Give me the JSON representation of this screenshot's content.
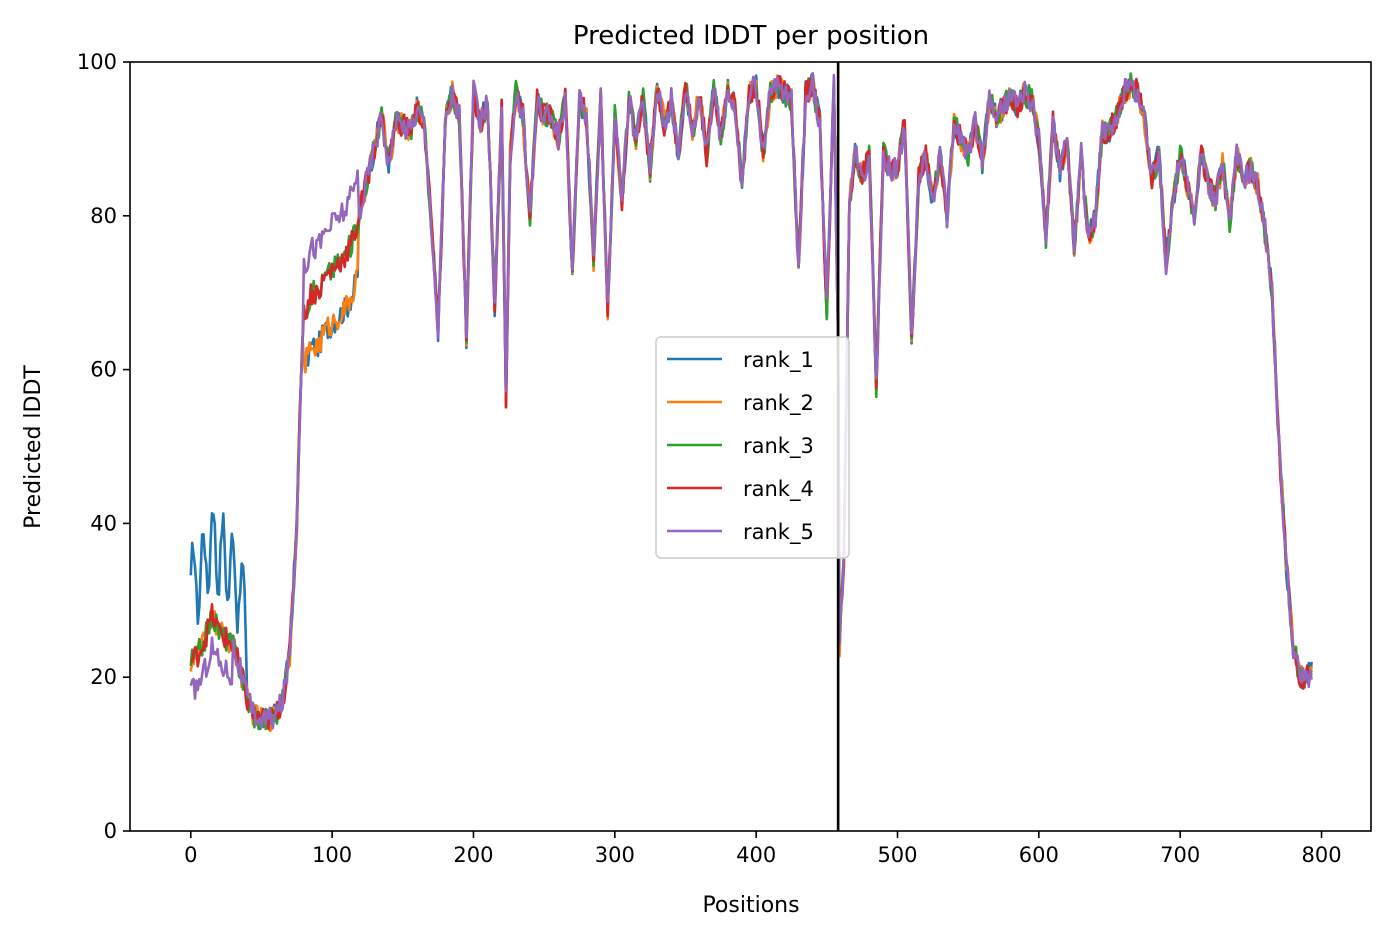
{
  "chart_data": {
    "type": "line",
    "title": "Predicted lDDT per position",
    "xlabel": "Positions",
    "ylabel": "Predicted lDDT",
    "xlim": [
      -43,
      835
    ],
    "ylim": [
      0,
      100
    ],
    "xticks": [
      0,
      100,
      200,
      300,
      400,
      500,
      600,
      700,
      800
    ],
    "yticks": [
      0,
      20,
      40,
      60,
      80,
      100
    ],
    "grid": false,
    "legend_position": "center",
    "vline": 458,
    "base_profile": [
      [
        0,
        22
      ],
      [
        5,
        23
      ],
      [
        10,
        25
      ],
      [
        15,
        28
      ],
      [
        20,
        26
      ],
      [
        25,
        25
      ],
      [
        30,
        24
      ],
      [
        35,
        21
      ],
      [
        40,
        17
      ],
      [
        45,
        15
      ],
      [
        50,
        14.5
      ],
      [
        55,
        14.5
      ],
      [
        60,
        15
      ],
      [
        65,
        17
      ],
      [
        70,
        23
      ],
      [
        75,
        40
      ],
      [
        78,
        60
      ],
      [
        80,
        67
      ],
      [
        85,
        70
      ],
      [
        90,
        70
      ],
      [
        95,
        72
      ],
      [
        100,
        73
      ],
      [
        105,
        74
      ],
      [
        110,
        75
      ],
      [
        115,
        77
      ],
      [
        120,
        81
      ],
      [
        125,
        85
      ],
      [
        130,
        89
      ],
      [
        135,
        93
      ],
      [
        140,
        87
      ],
      [
        145,
        92
      ],
      [
        150,
        92
      ],
      [
        155,
        91
      ],
      [
        160,
        94
      ],
      [
        165,
        92
      ],
      [
        170,
        80
      ],
      [
        175,
        65
      ],
      [
        180,
        92
      ],
      [
        185,
        96
      ],
      [
        190,
        93
      ],
      [
        195,
        64
      ],
      [
        200,
        96
      ],
      [
        205,
        92
      ],
      [
        210,
        95
      ],
      [
        215,
        68
      ],
      [
        220,
        94
      ],
      [
        223,
        56
      ],
      [
        226,
        88
      ],
      [
        230,
        96
      ],
      [
        235,
        93
      ],
      [
        240,
        80
      ],
      [
        245,
        95
      ],
      [
        250,
        93
      ],
      [
        255,
        93
      ],
      [
        260,
        90
      ],
      [
        265,
        95
      ],
      [
        270,
        73
      ],
      [
        275,
        95
      ],
      [
        280,
        93
      ],
      [
        285,
        74
      ],
      [
        290,
        96
      ],
      [
        295,
        68
      ],
      [
        300,
        93
      ],
      [
        305,
        82
      ],
      [
        310,
        95
      ],
      [
        315,
        90
      ],
      [
        320,
        95
      ],
      [
        325,
        86
      ],
      [
        330,
        97
      ],
      [
        335,
        92
      ],
      [
        340,
        95
      ],
      [
        345,
        88
      ],
      [
        350,
        97
      ],
      [
        355,
        91
      ],
      [
        360,
        96
      ],
      [
        365,
        88
      ],
      [
        370,
        97
      ],
      [
        375,
        90
      ],
      [
        380,
        97
      ],
      [
        385,
        94
      ],
      [
        390,
        84
      ],
      [
        395,
        96
      ],
      [
        400,
        97
      ],
      [
        405,
        88
      ],
      [
        410,
        96
      ],
      [
        415,
        97
      ],
      [
        420,
        96
      ],
      [
        425,
        95
      ],
      [
        430,
        73
      ],
      [
        435,
        96
      ],
      [
        440,
        97
      ],
      [
        445,
        92
      ],
      [
        450,
        68
      ],
      [
        455,
        97
      ],
      [
        458,
        64
      ],
      [
        459,
        24
      ],
      [
        462,
        35
      ],
      [
        466,
        82
      ],
      [
        470,
        88
      ],
      [
        475,
        85
      ],
      [
        480,
        88
      ],
      [
        485,
        58
      ],
      [
        490,
        88
      ],
      [
        495,
        86
      ],
      [
        500,
        86
      ],
      [
        505,
        92
      ],
      [
        510,
        64
      ],
      [
        515,
        85
      ],
      [
        520,
        88
      ],
      [
        525,
        82
      ],
      [
        530,
        88
      ],
      [
        535,
        80
      ],
      [
        540,
        92
      ],
      [
        545,
        90
      ],
      [
        550,
        88
      ],
      [
        555,
        92
      ],
      [
        560,
        87
      ],
      [
        565,
        95
      ],
      [
        570,
        93
      ],
      [
        575,
        94
      ],
      [
        580,
        96
      ],
      [
        585,
        94
      ],
      [
        590,
        96
      ],
      [
        595,
        95
      ],
      [
        600,
        90
      ],
      [
        605,
        77
      ],
      [
        610,
        92
      ],
      [
        615,
        86
      ],
      [
        620,
        90
      ],
      [
        625,
        76
      ],
      [
        630,
        88
      ],
      [
        635,
        77
      ],
      [
        640,
        80
      ],
      [
        645,
        91
      ],
      [
        650,
        91
      ],
      [
        655,
        93
      ],
      [
        660,
        96
      ],
      [
        665,
        97
      ],
      [
        670,
        96
      ],
      [
        675,
        92
      ],
      [
        680,
        85
      ],
      [
        685,
        88
      ],
      [
        690,
        74
      ],
      [
        695,
        82
      ],
      [
        700,
        88
      ],
      [
        705,
        84
      ],
      [
        710,
        80
      ],
      [
        715,
        88
      ],
      [
        720,
        84
      ],
      [
        725,
        82
      ],
      [
        730,
        87
      ],
      [
        735,
        79
      ],
      [
        740,
        88
      ],
      [
        745,
        85
      ],
      [
        750,
        86
      ],
      [
        755,
        84
      ],
      [
        760,
        78
      ],
      [
        765,
        70
      ],
      [
        770,
        50
      ],
      [
        775,
        35
      ],
      [
        780,
        24
      ],
      [
        785,
        20
      ],
      [
        790,
        20
      ],
      [
        793,
        21
      ]
    ],
    "series": [
      {
        "name": "rank_1",
        "color": "#1f77b4"
      },
      {
        "name": "rank_2",
        "color": "#ff7f0e"
      },
      {
        "name": "rank_3",
        "color": "#2ca02c"
      },
      {
        "name": "rank_4",
        "color": "#d62728"
      },
      {
        "name": "rank_5",
        "color": "#9467bd"
      }
    ]
  }
}
